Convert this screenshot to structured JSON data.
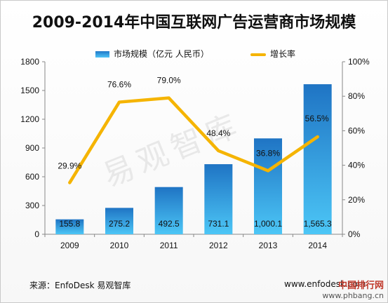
{
  "chart_data": {
    "type": "bar",
    "title": "2009-2014年中国互联网广告运营商市场规模",
    "categories": [
      "2009",
      "2010",
      "2011",
      "2012",
      "2013",
      "2014"
    ],
    "series": [
      {
        "name": "市场规模（亿元 人民币）",
        "type": "bar",
        "axis": "left",
        "values": [
          155.8,
          275.2,
          492.5,
          731.1,
          1000.1,
          1565.3
        ],
        "labels": [
          "155.8",
          "275.2",
          "492.5",
          "731.1",
          "1,000.1",
          "1,565.3"
        ]
      },
      {
        "name": "增长率",
        "type": "line",
        "axis": "right",
        "values": [
          29.9,
          76.6,
          79.0,
          48.4,
          36.8,
          56.5
        ],
        "labels": [
          "29.9%",
          "76.6%",
          "79.0%",
          "48.4%",
          "36.8%",
          "56.5%"
        ]
      }
    ],
    "ylim": [
      0,
      1800
    ],
    "y2lim": [
      0,
      100
    ],
    "yticks": [
      "0",
      "300",
      "600",
      "900",
      "1200",
      "1500",
      "1800"
    ],
    "y2ticks": [
      "0%",
      "20%",
      "40%",
      "60%",
      "80%",
      "100%"
    ],
    "grid": false,
    "legend_position": "top",
    "bar_color": "#2a8fdd",
    "line_color": "#f5b400"
  },
  "footer": {
    "source": "来源：EnfoDesk 易观智库",
    "site": "www.enfodesk.com"
  },
  "watermark": "易观智库",
  "badge": {
    "name": "中国排行网",
    "url": "www.phbang.cn"
  }
}
